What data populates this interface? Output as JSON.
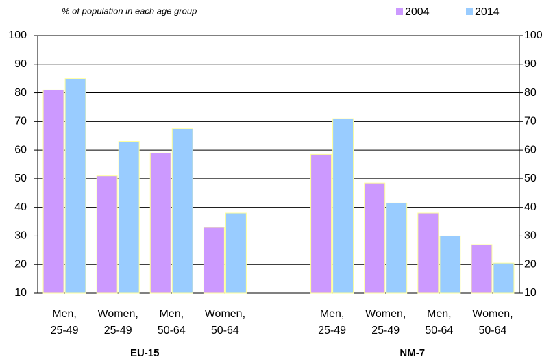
{
  "chart_data": {
    "type": "bar",
    "subtitle": "% of population in each age group",
    "categories": [
      "Men,\n25-49",
      "Women,\n25-49",
      "Men,\n50-64",
      "Women,\n50-64",
      null,
      "Men,\n25-49",
      "Women,\n25-49",
      "Men,\n50-64",
      "Women,\n50-64"
    ],
    "group_labels": [
      "EU-15",
      "NM-7"
    ],
    "series": [
      {
        "name": "2004",
        "color": "#cc99ff",
        "values": [
          81,
          51,
          59,
          33,
          null,
          58.5,
          48.5,
          38,
          27
        ]
      },
      {
        "name": "2014",
        "color": "#99ccff",
        "values": [
          85,
          63,
          67.5,
          38,
          null,
          71,
          41.5,
          30,
          20.5
        ]
      }
    ],
    "ylim": [
      10,
      100
    ],
    "yticks": [
      10,
      20,
      30,
      40,
      50,
      60,
      70,
      80,
      90,
      100
    ],
    "y2lim": [
      10,
      100
    ],
    "y2ticks": [
      10,
      20,
      30,
      40,
      50,
      60,
      70,
      80,
      90,
      100
    ],
    "grid": true,
    "legend": "top-right"
  }
}
